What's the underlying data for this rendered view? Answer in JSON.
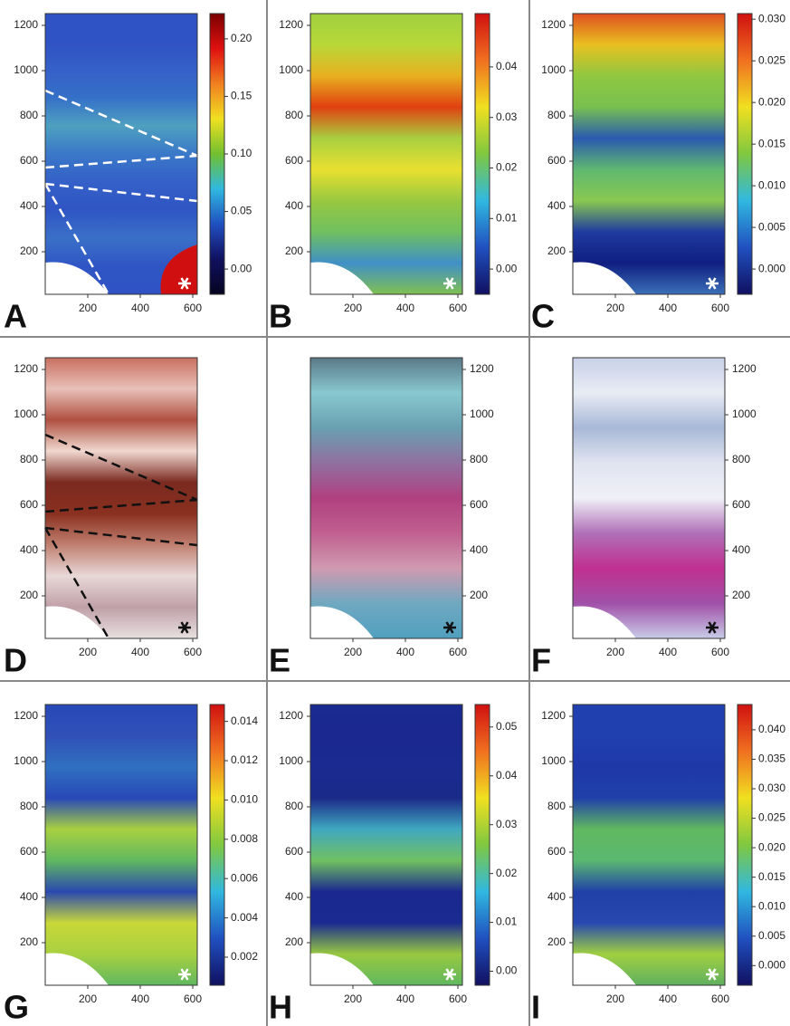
{
  "panels": [
    {
      "label": "A",
      "y_ticks": [
        "200",
        "400",
        "600",
        "800",
        "1000",
        "1200"
      ],
      "x_ticks": [
        "200",
        "400",
        "600"
      ],
      "colorbar_ticks": [
        "0.00",
        "0.05",
        "0.10",
        "0.15",
        "0.20"
      ]
    },
    {
      "label": "B",
      "y_ticks": [
        "200",
        "400",
        "600",
        "800",
        "1000",
        "1200"
      ],
      "x_ticks": [
        "200",
        "400",
        "600"
      ],
      "colorbar_ticks": [
        "0.00",
        "0.01",
        "0.02",
        "0.03",
        "0.04"
      ]
    },
    {
      "label": "C",
      "y_ticks": [
        "200",
        "400",
        "600",
        "800",
        "1000",
        "1200"
      ],
      "x_ticks": [
        "200",
        "400",
        "600"
      ],
      "colorbar_ticks": [
        "0.000",
        "0.005",
        "0.010",
        "0.015",
        "0.020",
        "0.025",
        "0.030"
      ]
    },
    {
      "label": "D",
      "y_ticks": [
        "200",
        "400",
        "600",
        "800",
        "1000",
        "1200"
      ],
      "x_ticks": [
        "200",
        "400",
        "600"
      ]
    },
    {
      "label": "E",
      "y_ticks": [
        "200",
        "400",
        "600",
        "800",
        "1000",
        "1200"
      ],
      "x_ticks": [
        "200",
        "400",
        "600"
      ]
    },
    {
      "label": "F",
      "y_ticks": [
        "200",
        "400",
        "600",
        "800",
        "1000",
        "1200"
      ],
      "x_ticks": [
        "200",
        "400",
        "600"
      ]
    },
    {
      "label": "G",
      "y_ticks": [
        "200",
        "400",
        "600",
        "800",
        "1000",
        "1200"
      ],
      "x_ticks": [
        "200",
        "400",
        "600"
      ],
      "colorbar_ticks": [
        "0.002",
        "0.004",
        "0.006",
        "0.008",
        "0.010",
        "0.012",
        "0.014"
      ]
    },
    {
      "label": "H",
      "y_ticks": [
        "200",
        "400",
        "600",
        "800",
        "1000",
        "1200"
      ],
      "x_ticks": [
        "200",
        "400",
        "600"
      ],
      "colorbar_ticks": [
        "0.00",
        "0.01",
        "0.02",
        "0.03",
        "0.04",
        "0.05"
      ]
    },
    {
      "label": "I",
      "y_ticks": [
        "200",
        "400",
        "600",
        "800",
        "1000",
        "1200"
      ],
      "x_ticks": [
        "200",
        "400",
        "600"
      ],
      "colorbar_ticks": [
        "0.000",
        "0.005",
        "0.010",
        "0.015",
        "0.020",
        "0.025",
        "0.030",
        "0.035",
        "0.040"
      ]
    }
  ]
}
